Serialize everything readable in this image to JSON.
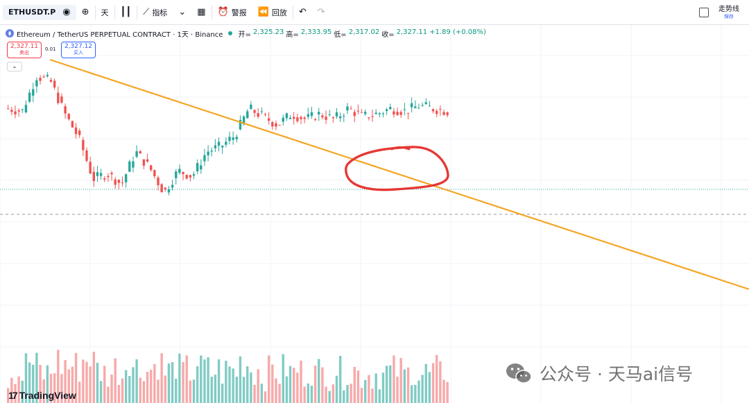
{
  "toolbar": {
    "symbol": "ETHUSDT.P",
    "interval": "天",
    "indicators_label": "指标",
    "alert_label": "警报",
    "replay_label": "回放",
    "save_main": "走势线",
    "save_sub": "保存"
  },
  "legend": {
    "title": "Ethereum / TetherUS PERPETUAL CONTRACT · 1天 · Binance",
    "open_label": "开=",
    "open": "2,325.23",
    "high_label": "高=",
    "high": "2,333.95",
    "low_label": "低=",
    "low": "2,317.02",
    "close_label": "收=",
    "close": "2,327.11",
    "change": "+1.89 (+0.08%)"
  },
  "trade": {
    "sell_price": "2,327.11",
    "sell_label": "卖出",
    "spread": "0.01",
    "buy_price": "2,327.12",
    "buy_label": "买入"
  },
  "brand": {
    "logo_text": "TradingView"
  },
  "watermark": {
    "text": "公众号 · 天马ai信号"
  },
  "colors": {
    "up": "#26a69a",
    "down": "#ef5350",
    "up_volume": "#80cbc4",
    "down_volume": "#f7a9a9",
    "trendline": "#f5a524",
    "annotation": "#e53935",
    "current_price_line": "#26a69a"
  },
  "chart_data": {
    "type": "candlestick",
    "series": [
      {
        "name": "price",
        "candles": [
          {
            "o": 0.72,
            "h": 0.77,
            "l": 0.7,
            "c": 0.74
          },
          {
            "o": 0.74,
            "h": 0.79,
            "l": 0.71,
            "c": 0.73
          },
          {
            "o": 0.75,
            "h": 0.88,
            "l": 0.72,
            "c": 0.86
          },
          {
            "o": 0.86,
            "h": 0.9,
            "l": 0.82,
            "c": 0.84
          },
          {
            "o": 0.84,
            "h": 0.85,
            "l": 0.7,
            "c": 0.72
          },
          {
            "o": 0.72,
            "h": 0.75,
            "l": 0.6,
            "c": 0.63
          },
          {
            "o": 0.63,
            "h": 0.66,
            "l": 0.45,
            "c": 0.48
          },
          {
            "o": 0.48,
            "h": 0.56,
            "l": 0.44,
            "c": 0.5
          },
          {
            "o": 0.5,
            "h": 0.53,
            "l": 0.43,
            "c": 0.46
          },
          {
            "o": 0.46,
            "h": 0.6,
            "l": 0.44,
            "c": 0.58
          },
          {
            "o": 0.58,
            "h": 0.61,
            "l": 0.5,
            "c": 0.52
          },
          {
            "o": 0.52,
            "h": 0.55,
            "l": 0.41,
            "c": 0.43
          },
          {
            "o": 0.43,
            "h": 0.53,
            "l": 0.42,
            "c": 0.51
          },
          {
            "o": 0.51,
            "h": 0.54,
            "l": 0.48,
            "c": 0.49
          },
          {
            "o": 0.49,
            "h": 0.6,
            "l": 0.48,
            "c": 0.58
          },
          {
            "o": 0.58,
            "h": 0.62,
            "l": 0.57,
            "c": 0.6
          },
          {
            "o": 0.6,
            "h": 0.66,
            "l": 0.58,
            "c": 0.64
          },
          {
            "o": 0.64,
            "h": 0.76,
            "l": 0.63,
            "c": 0.74
          },
          {
            "o": 0.74,
            "h": 0.77,
            "l": 0.7,
            "c": 0.71
          },
          {
            "o": 0.71,
            "h": 0.72,
            "l": 0.66,
            "c": 0.68
          },
          {
            "o": 0.68,
            "h": 0.74,
            "l": 0.67,
            "c": 0.72
          },
          {
            "o": 0.72,
            "h": 0.74,
            "l": 0.69,
            "c": 0.7
          },
          {
            "o": 0.7,
            "h": 0.73,
            "l": 0.68,
            "c": 0.72
          },
          {
            "o": 0.72,
            "h": 0.73,
            "l": 0.69,
            "c": 0.7
          },
          {
            "o": 0.7,
            "h": 0.75,
            "l": 0.69,
            "c": 0.74
          },
          {
            "o": 0.74,
            "h": 0.76,
            "l": 0.7,
            "c": 0.71
          },
          {
            "o": 0.71,
            "h": 0.73,
            "l": 0.7,
            "c": 0.72
          },
          {
            "o": 0.72,
            "h": 0.75,
            "l": 0.71,
            "c": 0.74
          },
          {
            "o": 0.74,
            "h": 0.75,
            "l": 0.72,
            "c": 0.73
          },
          {
            "o": 0.73,
            "h": 0.76,
            "l": 0.72,
            "c": 0.75
          },
          {
            "o": 0.75,
            "h": 0.77,
            "l": 0.73,
            "c": 0.74
          },
          {
            "o": 0.74,
            "h": 0.75,
            "l": 0.72,
            "c": 0.73
          }
        ]
      }
    ],
    "trendline": true,
    "grid": true
  }
}
